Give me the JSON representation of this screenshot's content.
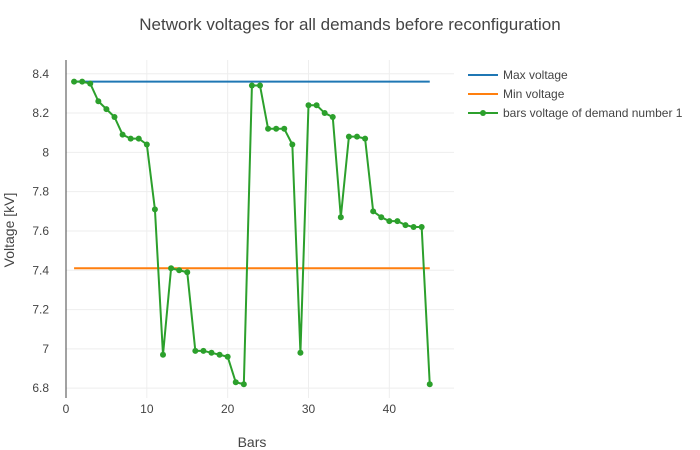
{
  "chart_data": {
    "type": "line",
    "title": "Network voltages for all demands before reconfiguration",
    "xlabel": "Bars",
    "ylabel": "Voltage [kV]",
    "xlim": [
      0,
      48
    ],
    "ylim": [
      6.75,
      8.47
    ],
    "xticks": [
      0,
      10,
      20,
      30,
      40
    ],
    "yticks": [
      6.8,
      7,
      7.2,
      7.4,
      7.6,
      7.8,
      8,
      8.2,
      8.4
    ],
    "ytick_labels": [
      "6.8",
      "7",
      "7.2",
      "7.4",
      "7.6",
      "7.8",
      "8",
      "8.2",
      "8.4"
    ],
    "xtick_labels": [
      "0",
      "10",
      "20",
      "30",
      "40"
    ],
    "grid": true,
    "legend_position": "right",
    "series": [
      {
        "name": "Max voltage",
        "color": "#1f77b4",
        "markers": false,
        "x": [
          1,
          45
        ],
        "y": [
          8.36,
          8.36
        ]
      },
      {
        "name": "Min voltage",
        "color": "#ff7f0e",
        "markers": false,
        "x": [
          1,
          45
        ],
        "y": [
          7.41,
          7.41
        ]
      },
      {
        "name": "bars voltage of demand number 1",
        "color": "#2ca02c",
        "markers": true,
        "x": [
          1,
          2,
          3,
          4,
          5,
          6,
          7,
          8,
          9,
          10,
          11,
          12,
          13,
          14,
          15,
          16,
          17,
          18,
          19,
          20,
          21,
          22,
          23,
          24,
          25,
          26,
          27,
          28,
          29,
          30,
          31,
          32,
          33,
          34,
          35,
          36,
          37,
          38,
          39,
          40,
          41,
          42,
          43,
          44,
          45
        ],
        "y": [
          8.36,
          8.36,
          8.35,
          8.26,
          8.22,
          8.18,
          8.09,
          8.07,
          8.07,
          8.04,
          7.71,
          6.97,
          7.41,
          7.4,
          7.39,
          6.99,
          6.99,
          6.98,
          6.97,
          6.96,
          6.83,
          6.82,
          8.34,
          8.34,
          8.12,
          8.12,
          8.12,
          8.04,
          6.98,
          8.24,
          8.24,
          8.2,
          8.18,
          7.67,
          8.08,
          8.08,
          8.07,
          7.7,
          7.67,
          7.65,
          7.65,
          7.63,
          7.62,
          7.62,
          6.82
        ]
      }
    ]
  }
}
